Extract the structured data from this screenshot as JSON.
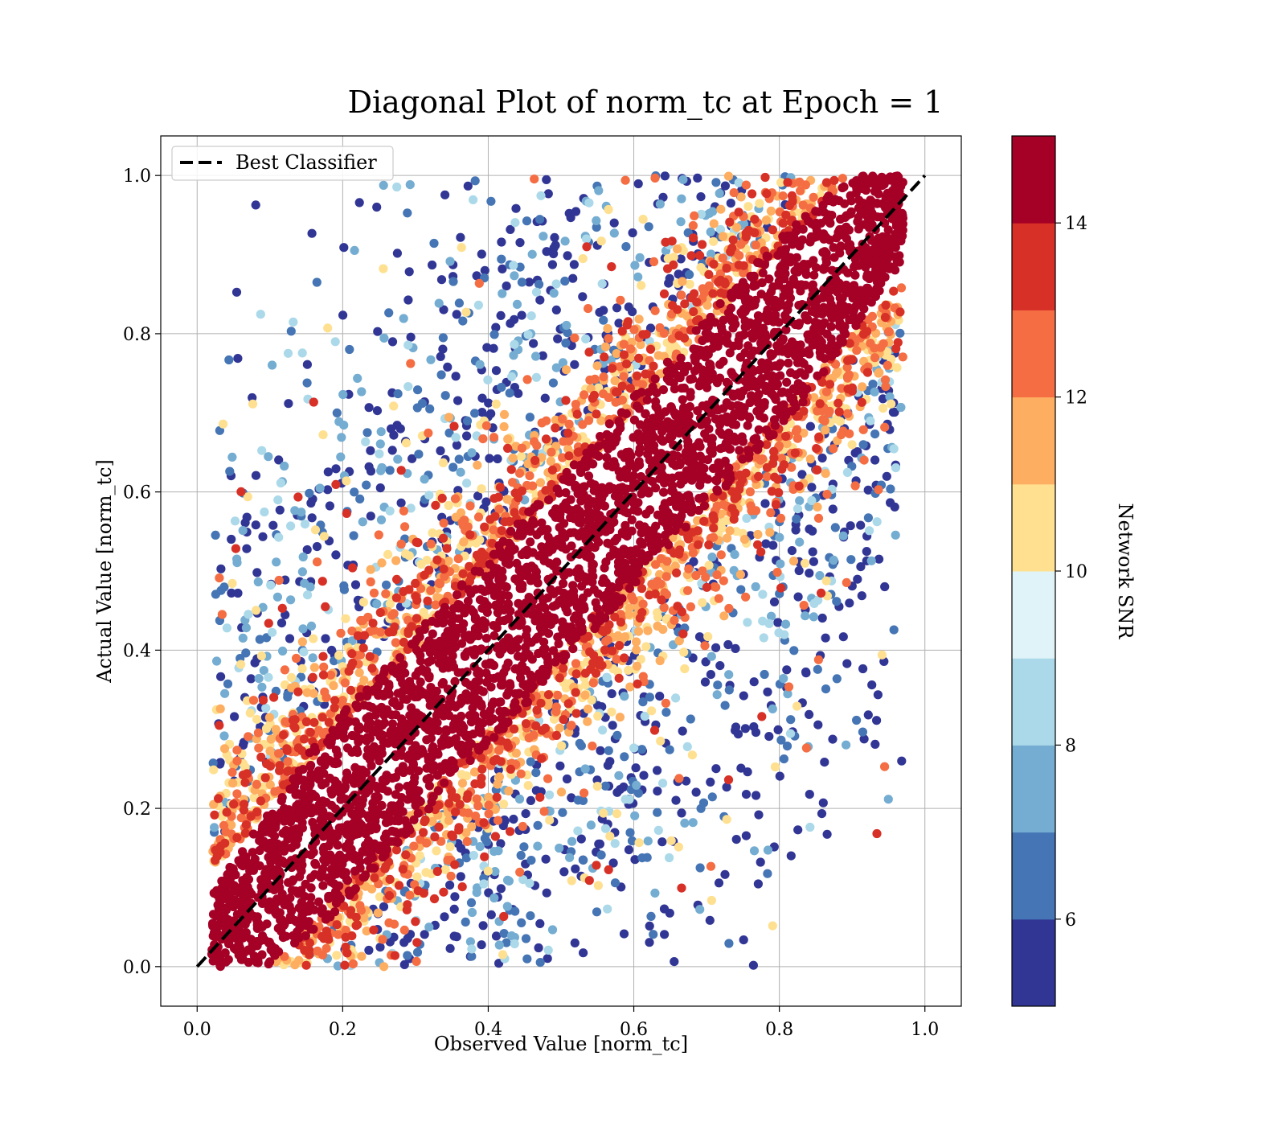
{
  "chart_data": {
    "type": "scatter",
    "title": "Diagonal Plot of norm_tc at Epoch = 1",
    "xlabel": "Observed Value [norm_tc]",
    "ylabel": "Actual Value [norm_tc]",
    "xlim": [
      -0.05,
      1.05
    ],
    "ylim": [
      -0.05,
      1.05
    ],
    "x_ticks": [
      "0.0",
      "0.2",
      "0.4",
      "0.6",
      "0.8",
      "1.0"
    ],
    "y_ticks": [
      "0.0",
      "0.2",
      "0.4",
      "0.6",
      "0.8",
      "1.0"
    ],
    "grid": true,
    "legend": {
      "position": "top-left",
      "entries": [
        {
          "label": "Best Classifier",
          "style": "black dashed line"
        }
      ]
    },
    "reference_line": {
      "x": [
        0,
        1
      ],
      "y": [
        0,
        1
      ]
    },
    "colorbar": {
      "label": "Network SNR",
      "range": [
        5,
        15
      ],
      "tick_labels": [
        "6",
        "8",
        "10",
        "12",
        "14"
      ],
      "tick_values": [
        6,
        8,
        10,
        12,
        14
      ],
      "colors": [
        "#313695",
        "#4575b4",
        "#74add1",
        "#abd9e9",
        "#e0f3f8",
        "#fee090",
        "#fdae61",
        "#f46d43",
        "#d73027",
        "#a50026"
      ]
    },
    "point_distribution": {
      "description_values": "points cluster along y = x; high SNR (>=14) tightly on diagonal, lower SNR scattered farther",
      "core_band_halfwidth": 0.12,
      "x_range": [
        0.02,
        0.97
      ],
      "y_range": [
        0.0,
        1.0
      ]
    }
  }
}
